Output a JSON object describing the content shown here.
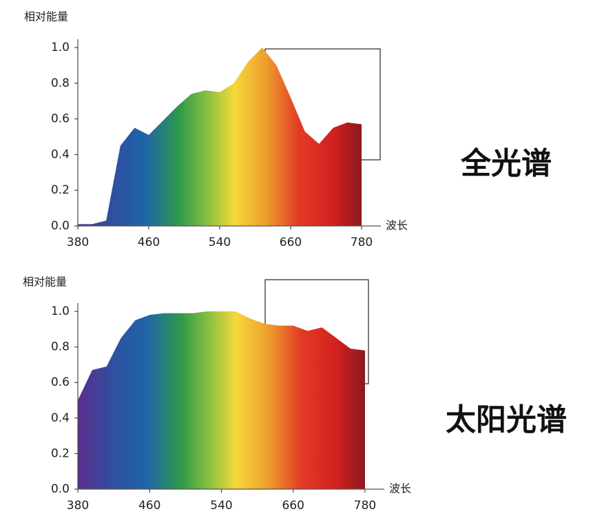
{
  "chart_data": [
    {
      "type": "area",
      "y_label": "相对能量",
      "x_label": "波长",
      "annotation": "全光谱",
      "categories": [
        "380",
        null,
        null,
        null,
        null,
        "460",
        null,
        null,
        null,
        null,
        "540",
        null,
        null,
        null,
        null,
        "660",
        null,
        null,
        null,
        null,
        "780"
      ],
      "values": [
        0.01,
        0.01,
        0.03,
        0.45,
        0.55,
        0.51,
        0.59,
        0.67,
        0.74,
        0.76,
        0.75,
        0.8,
        0.92,
        1.0,
        0.9,
        0.72,
        0.53,
        0.46,
        0.55,
        0.58,
        0.57
      ],
      "ylim": [
        0,
        1.0
      ],
      "yticks": [
        {
          "value": 0,
          "label": "0.0"
        },
        0.2,
        0.4,
        0.6,
        0.8,
        {
          "value": 1,
          "label": "1.0"
        }
      ]
    },
    {
      "type": "area",
      "y_label": "相对能量",
      "x_label": "波长",
      "annotation": "太阳光谱",
      "categories": [
        "380",
        null,
        null,
        null,
        null,
        "460",
        null,
        null,
        null,
        null,
        "540",
        null,
        null,
        null,
        null,
        "660",
        null,
        null,
        null,
        null,
        "780"
      ],
      "values": [
        0.5,
        0.67,
        0.69,
        0.85,
        0.95,
        0.98,
        0.99,
        0.99,
        0.99,
        1.0,
        1.0,
        1.0,
        0.96,
        0.93,
        0.92,
        0.92,
        0.89,
        0.91,
        0.85,
        0.79,
        0.78
      ],
      "ylim": [
        0,
        1.0
      ],
      "yticks": [
        {
          "value": 0,
          "label": "0.0"
        },
        0.2,
        0.4,
        0.6,
        0.8,
        {
          "value": 1,
          "label": "1.0"
        }
      ]
    }
  ]
}
